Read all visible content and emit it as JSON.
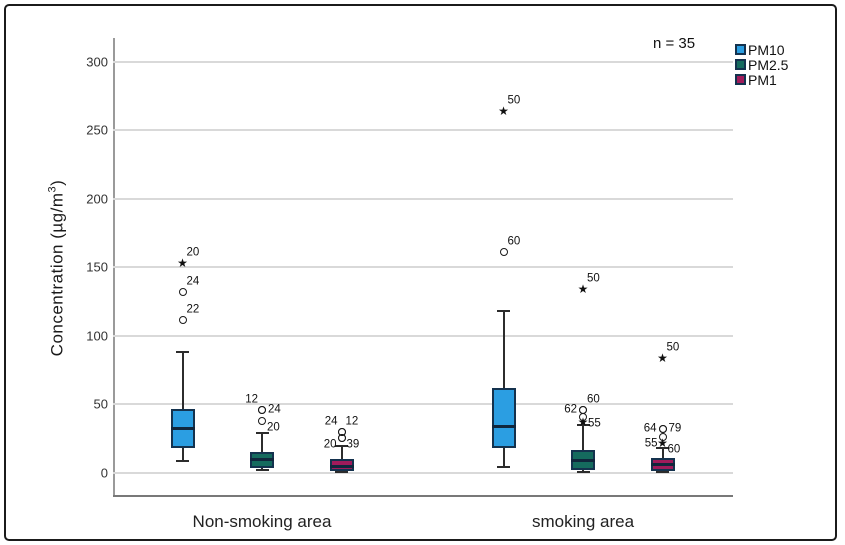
{
  "figure": {
    "background": "#ffffff",
    "border_color": "#1b1b1b"
  },
  "colors": {
    "grid": "#d9d9d9",
    "axis": "#8f8f8f",
    "box_border": "#14324e",
    "text": "#262626"
  },
  "chart_data": {
    "type": "boxplot",
    "title": "",
    "ylabel": "Concentration (µg/m³)",
    "ylabel_parts": {
      "main": "Concentration (µg/m",
      "sup": "3",
      "end": ")"
    },
    "xlabel": "",
    "annotation": "n = 35",
    "ylim": [
      0,
      320
    ],
    "yticks": [
      0,
      50,
      100,
      150,
      200,
      250,
      300
    ],
    "grid": true,
    "legend_position": "top-right-outside",
    "markers": {
      "circle": "open-circle",
      "star": "★"
    },
    "categories": [
      "Non-smoking area",
      "smoking area"
    ],
    "series": [
      {
        "name": "PM10",
        "color": "#2B9EE2",
        "boxes": [
          {
            "category": "Non-smoking area",
            "whisker_low": 9,
            "q1": 18.5,
            "median": 32.5,
            "q3": 47,
            "whisker_high": 88,
            "outliers": [
              {
                "value": 112,
                "marker": "circle",
                "label": "22",
                "label_pos": "right-above"
              },
              {
                "value": 132,
                "marker": "circle",
                "label": "24",
                "label_pos": "right-above"
              },
              {
                "value": 153,
                "marker": "star",
                "label": "20",
                "label_pos": "right-above"
              }
            ]
          },
          {
            "category": "smoking area",
            "whisker_low": 4.5,
            "q1": 18.5,
            "median": 34,
            "q3": 62,
            "whisker_high": 118,
            "outliers": [
              {
                "value": 161,
                "marker": "circle",
                "label": "60",
                "label_pos": "right-above"
              },
              {
                "value": 264,
                "marker": "star",
                "label": "50",
                "label_pos": "right-above"
              }
            ]
          }
        ]
      },
      {
        "name": "PM2.5",
        "color": "#156B5E",
        "boxes": [
          {
            "category": "Non-smoking area",
            "whisker_low": 2,
            "q1": 4,
            "median": 9.5,
            "q3": 15.5,
            "whisker_high": 29,
            "outliers": [
              {
                "value": 46,
                "marker": "circle",
                "label": "12",
                "label_pos": "left-above"
              },
              {
                "value": 46,
                "marker": "circle",
                "label": "24",
                "label_pos": "right"
              },
              {
                "value": 38,
                "marker": "circle",
                "label": "20",
                "label_pos": "right-below"
              }
            ]
          },
          {
            "category": "smoking area",
            "whisker_low": 0.5,
            "q1": 2.5,
            "median": 9,
            "q3": 17,
            "whisker_high": 35,
            "outliers": [
              {
                "value": 46,
                "marker": "circle",
                "label": "62",
                "label_pos": "left"
              },
              {
                "value": 46,
                "marker": "circle",
                "label": "60",
                "label_pos": "right-above"
              },
              {
                "value": 41,
                "marker": "circle",
                "label": "55",
                "label_pos": "right-below"
              },
              {
                "value": 37,
                "marker": "star",
                "label": "",
                "label_pos": "right"
              },
              {
                "value": 134,
                "marker": "star",
                "label": "50",
                "label_pos": "right-above"
              }
            ]
          }
        ]
      },
      {
        "name": "PM1",
        "color": "#A01B5B",
        "boxes": [
          {
            "category": "Non-smoking area",
            "whisker_low": 0.5,
            "q1": 1.5,
            "median": 5,
            "q3": 10,
            "whisker_high": 20,
            "outliers": [
              {
                "value": 30,
                "marker": "circle",
                "label": "24",
                "label_pos": "left-above"
              },
              {
                "value": 30,
                "marker": "circle",
                "label": "12",
                "label_pos": "right-above"
              },
              {
                "value": 25.5,
                "marker": "circle",
                "label": "20",
                "label_pos": "left-below"
              },
              {
                "value": 25.5,
                "marker": "circle",
                "label": "39",
                "label_pos": "right-below"
              }
            ]
          },
          {
            "category": "smoking area",
            "whisker_low": 0.5,
            "q1": 1.5,
            "median": 6,
            "q3": 11,
            "whisker_high": 18,
            "outliers": [
              {
                "value": 32,
                "marker": "circle",
                "label": "64",
                "label_pos": "left"
              },
              {
                "value": 32,
                "marker": "circle",
                "label": "79",
                "label_pos": "right"
              },
              {
                "value": 26.5,
                "marker": "circle",
                "label": "55",
                "label_pos": "left-below"
              },
              {
                "value": 22,
                "marker": "star",
                "label": "60",
                "label_pos": "right-below"
              },
              {
                "value": 84,
                "marker": "star",
                "label": "50",
                "label_pos": "right-above"
              }
            ]
          }
        ]
      }
    ]
  }
}
